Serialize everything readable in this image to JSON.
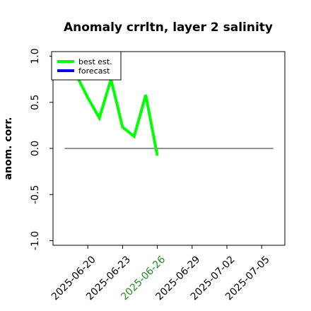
{
  "chart_data": {
    "type": "line",
    "title": "Anomaly crrltn, layer 2 salinity",
    "xlabel": "",
    "ylabel": "anom. corr.",
    "x_range": [
      "2025-06-17",
      "2025-07-07"
    ],
    "ylim": [
      -1.05,
      1.05
    ],
    "y_ticks": [
      {
        "value": 1.0,
        "label": "1.0"
      },
      {
        "value": 0.5,
        "label": "0.5"
      },
      {
        "value": 0.0,
        "label": "0.0"
      },
      {
        "value": -0.5,
        "label": "-0.5"
      },
      {
        "value": -1.0,
        "label": "-1.0"
      }
    ],
    "x_ticks": [
      {
        "value": "2025-06-20",
        "label": "2025-06-20",
        "color": "#000000"
      },
      {
        "value": "2025-06-23",
        "label": "2025-06-23",
        "color": "#000000"
      },
      {
        "value": "2025-06-26",
        "label": "2025-06-26",
        "color": "#228B22"
      },
      {
        "value": "2025-06-29",
        "label": "2025-06-29",
        "color": "#000000"
      },
      {
        "value": "2025-07-02",
        "label": "2025-07-02",
        "color": "#000000"
      },
      {
        "value": "2025-07-05",
        "label": "2025-07-05",
        "color": "#000000"
      }
    ],
    "zero_line": {
      "y": 0,
      "x_start": "2025-06-18",
      "x_end": "2025-07-06",
      "color": "#555555"
    },
    "grid": false,
    "legend": {
      "placement": "top-left"
    },
    "series": [
      {
        "name": "best est.",
        "color": "#00ff00",
        "points": [
          {
            "x": "2025-06-19",
            "y": 0.8
          },
          {
            "x": "2025-06-20",
            "y": 0.55
          },
          {
            "x": "2025-06-21",
            "y": 0.33
          },
          {
            "x": "2025-06-22",
            "y": 0.75
          },
          {
            "x": "2025-06-23",
            "y": 0.23
          },
          {
            "x": "2025-06-24",
            "y": 0.13
          },
          {
            "x": "2025-06-25",
            "y": 0.58
          },
          {
            "x": "2025-06-26",
            "y": -0.08
          }
        ]
      },
      {
        "name": "forecast",
        "color": "#0000ff",
        "points": []
      }
    ]
  }
}
